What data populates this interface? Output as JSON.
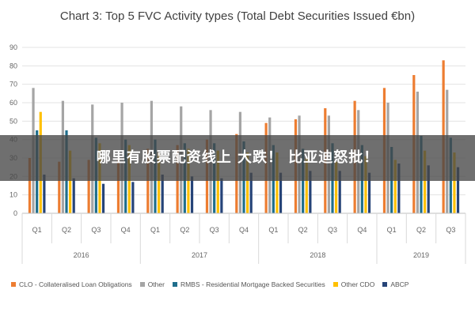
{
  "banner": {
    "text": "哪里有股票配资线上 大跌！ 比亚迪怒批！"
  },
  "chart_data": {
    "type": "bar",
    "title": "Chart 3: Top 5 FVC Activity types (Total Debt Securities Issued €bn)",
    "ylim": [
      0,
      90
    ],
    "yticks": [
      0,
      10,
      20,
      30,
      40,
      50,
      60,
      70,
      80,
      90
    ],
    "grid": true,
    "legend_position": "bottom",
    "categories": [
      "Q1",
      "Q2",
      "Q3",
      "Q4",
      "Q1",
      "Q2",
      "Q3",
      "Q4",
      "Q1",
      "Q2",
      "Q3",
      "Q4",
      "Q1",
      "Q2",
      "Q3"
    ],
    "groups": [
      {
        "label": "2016",
        "span": 4
      },
      {
        "label": "2017",
        "span": 4
      },
      {
        "label": "2018",
        "span": 4
      },
      {
        "label": "2019",
        "span": 3
      }
    ],
    "series": [
      {
        "name": "CLO - Collateralised Loan Obligations",
        "color": "#ED7D31",
        "values": [
          30,
          28,
          29,
          30,
          35,
          37,
          40,
          43,
          49,
          51,
          57,
          61,
          68,
          75,
          83
        ]
      },
      {
        "name": "Other",
        "color": "#A5A5A5",
        "values": [
          68,
          61,
          59,
          60,
          61,
          58,
          56,
          55,
          52,
          53,
          53,
          56,
          60,
          66,
          67
        ]
      },
      {
        "name": "RMBS - Residential Mortgage Backed Securities",
        "color": "#1F6E8C",
        "values": [
          45,
          45,
          41,
          40,
          40,
          38,
          38,
          39,
          37,
          35,
          38,
          37,
          36,
          42,
          41
        ]
      },
      {
        "name": "Other CDO",
        "color": "#FFC000",
        "values": [
          55,
          34,
          38,
          37,
          33,
          35,
          34,
          33,
          33,
          30,
          28,
          31,
          29,
          34,
          33
        ]
      },
      {
        "name": "ABCP",
        "color": "#264478",
        "values": [
          21,
          19,
          16,
          17,
          21,
          20,
          19,
          22,
          22,
          23,
          23,
          22,
          27,
          26,
          25
        ]
      }
    ]
  }
}
